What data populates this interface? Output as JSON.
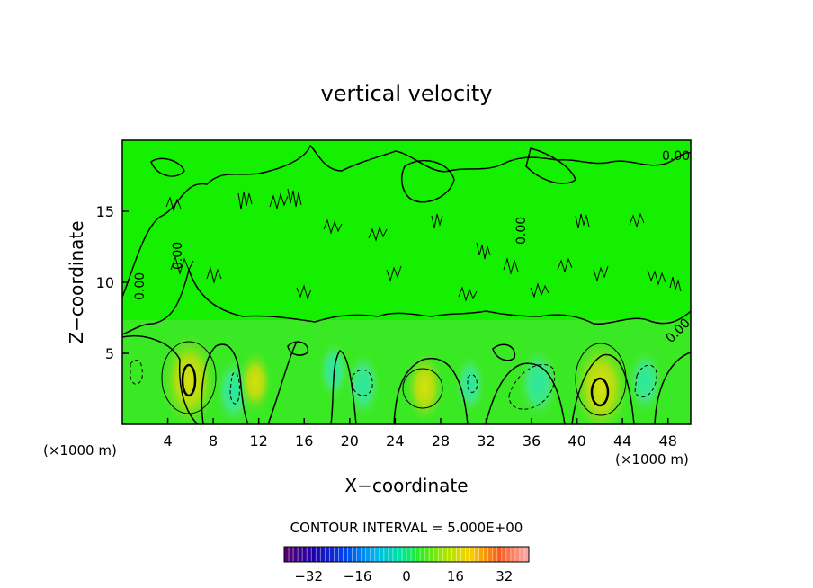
{
  "chart_data": {
    "type": "heatmap",
    "title": "vertical velocity",
    "xlabel": "X−coordinate",
    "ylabel": "Z−coordinate",
    "x_unit_label": "(×1000 m)",
    "y_unit_label": "(×1000 m)",
    "xlim": [
      0,
      50
    ],
    "ylim": [
      0,
      20
    ],
    "x_ticks": [
      4,
      8,
      12,
      16,
      20,
      24,
      28,
      32,
      36,
      40,
      44,
      48
    ],
    "y_ticks": [
      5,
      10,
      15
    ],
    "contour_interval_text": "CONTOUR INTERVAL = 5.000E+00",
    "contour_label": "0.00",
    "colorbar": {
      "min": -40,
      "max": 40,
      "ticks": [
        -32,
        -16,
        0,
        16,
        32
      ],
      "tick_labels": [
        "−32",
        "−16",
        "0",
        "16",
        "32"
      ]
    },
    "features": [
      {
        "kind": "updraft",
        "x": 5.9,
        "z": 3.1,
        "value": 22
      },
      {
        "kind": "downdraft",
        "x": 9.8,
        "z": 2.3,
        "value": -10
      },
      {
        "kind": "updraft",
        "x": 11.7,
        "z": 3.0,
        "value": 8
      },
      {
        "kind": "downdraft",
        "x": 18.6,
        "z": 3.8,
        "value": -6
      },
      {
        "kind": "downdraft",
        "x": 21.2,
        "z": 2.8,
        "value": -9
      },
      {
        "kind": "updraft",
        "x": 26.6,
        "z": 2.6,
        "value": 11
      },
      {
        "kind": "downdraft",
        "x": 30.6,
        "z": 2.8,
        "value": -6
      },
      {
        "kind": "downdraft",
        "x": 36.6,
        "z": 2.9,
        "value": -12
      },
      {
        "kind": "updraft",
        "x": 42.1,
        "z": 2.6,
        "value": 23
      },
      {
        "kind": "downdraft",
        "x": 46.0,
        "z": 3.0,
        "value": -9
      }
    ]
  }
}
